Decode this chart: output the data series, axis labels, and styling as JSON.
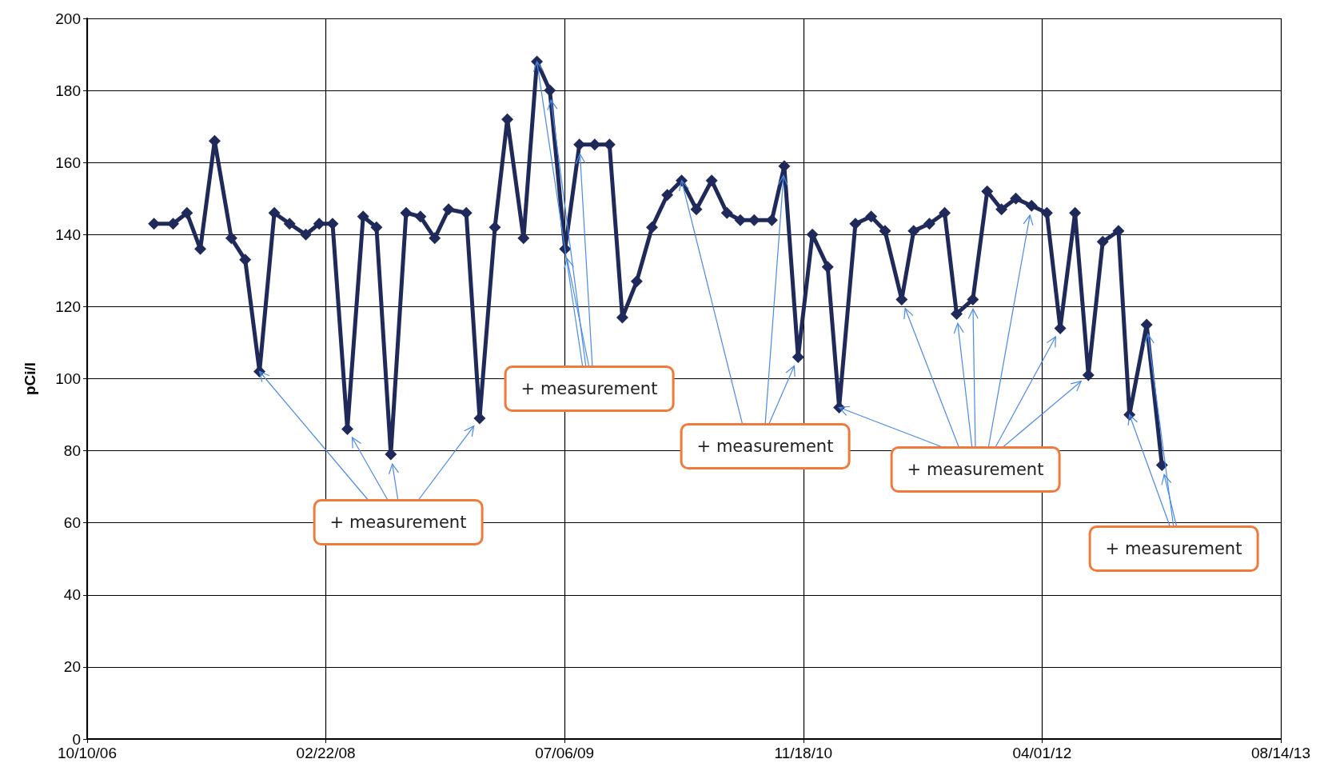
{
  "chart_data": {
    "type": "line",
    "ylabel": "pCi/l",
    "x": [
      "2007-02-27",
      "2007-04-08",
      "2007-05-07",
      "2007-06-04",
      "2007-07-04",
      "2007-08-08",
      "2007-09-06",
      "2007-10-06",
      "2007-11-06",
      "2007-12-08",
      "2008-01-11",
      "2008-02-08",
      "2008-03-07",
      "2008-04-07",
      "2008-05-10",
      "2008-06-07",
      "2008-07-07",
      "2008-08-08",
      "2008-09-07",
      "2008-10-07",
      "2008-11-05",
      "2008-12-12",
      "2009-01-09",
      "2009-02-10",
      "2009-03-08",
      "2009-04-11",
      "2009-05-09",
      "2009-06-05",
      "2009-07-07",
      "2009-08-06",
      "2009-09-07",
      "2009-10-08",
      "2009-11-04",
      "2009-12-04",
      "2010-01-05",
      "2010-02-06",
      "2010-03-08",
      "2010-04-08",
      "2010-05-10",
      "2010-06-11",
      "2010-07-09",
      "2010-08-07",
      "2010-09-13",
      "2010-10-09",
      "2010-11-07",
      "2010-12-07",
      "2011-01-08",
      "2011-02-01",
      "2011-03-07",
      "2011-04-09",
      "2011-05-08",
      "2011-06-12",
      "2011-07-07",
      "2011-08-09",
      "2011-09-10",
      "2011-10-05",
      "2011-11-08",
      "2011-12-08",
      "2012-01-07",
      "2012-02-06",
      "2012-03-10",
      "2012-04-11",
      "2012-05-09",
      "2012-06-09",
      "2012-07-07",
      "2012-08-06",
      "2012-09-08",
      "2012-10-01",
      "2012-11-06",
      "2012-12-08"
    ],
    "values": [
      143,
      143,
      146,
      136,
      166,
      139,
      133,
      102,
      146,
      143,
      140,
      143,
      143,
      86,
      145,
      142,
      79,
      146,
      145,
      139,
      147,
      146,
      89,
      142,
      172,
      139,
      188,
      180,
      136,
      165,
      165,
      165,
      117,
      127,
      142,
      151,
      155,
      147,
      155,
      146,
      144,
      144,
      144,
      159,
      106,
      140,
      131,
      92,
      143,
      145,
      141,
      122,
      141,
      143,
      146,
      118,
      122,
      152,
      147,
      150,
      148,
      146,
      114,
      146,
      101,
      138,
      141,
      90,
      115,
      76
    ],
    "color": "#1f2a5a",
    "marker": "diamond",
    "line_style": "solid",
    "grid": true,
    "ylim": [
      0,
      200
    ],
    "yticks": [
      0,
      20,
      40,
      60,
      80,
      100,
      120,
      140,
      160,
      180,
      200
    ],
    "xlim": [
      "2006-10-10",
      "2013-08-14"
    ],
    "xticks": [
      {
        "value": "2006-10-10",
        "label": "10/10/06"
      },
      {
        "value": "2008-02-22",
        "label": "02/22/08"
      },
      {
        "value": "2009-07-06",
        "label": "07/06/09"
      },
      {
        "value": "2010-11-18",
        "label": "11/18/10"
      },
      {
        "value": "2012-04-01",
        "label": "04/01/12"
      },
      {
        "value": "2013-08-14",
        "label": "08/14/13"
      }
    ],
    "annotations": [
      {
        "text": "+ measurement",
        "x": "2007-10-06",
        "y": 102
      },
      {
        "text": "+ measurement",
        "x": "2009-05-09",
        "y": 188
      },
      {
        "text": "+ measurement",
        "x": "2010-03-08",
        "y": 155
      },
      {
        "text": "+ measurement",
        "x": "2011-02-01",
        "y": 92
      },
      {
        "text": "+ measurement",
        "x": "2012-10-01",
        "y": 90
      }
    ]
  }
}
